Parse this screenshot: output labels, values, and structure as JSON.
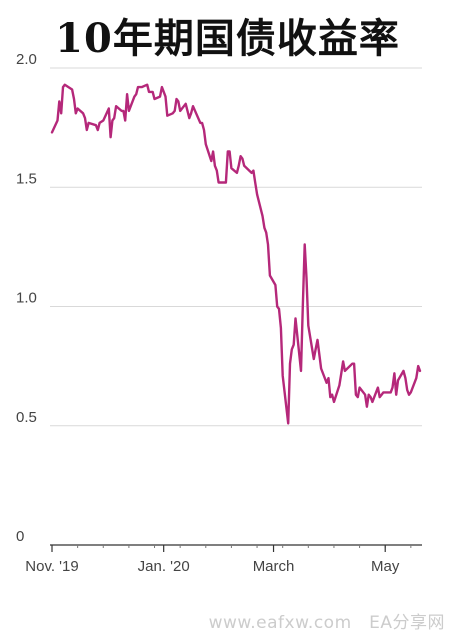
{
  "chart_data": {
    "type": "line",
    "title": "10年期国债收益率",
    "xlabel": "",
    "ylabel": "",
    "ylim": [
      0,
      2.0
    ],
    "yticks": [
      {
        "value": 0,
        "label": "0"
      },
      {
        "value": 0.5,
        "label": "0.5"
      },
      {
        "value": 1.0,
        "label": "1.0"
      },
      {
        "value": 1.5,
        "label": "1.5"
      },
      {
        "value": 2.0,
        "label": "2.0"
      }
    ],
    "xticks": [
      {
        "date": "2019-11-01",
        "label": "Nov. '19"
      },
      {
        "date": "2020-01-01",
        "label": "Jan. '20"
      },
      {
        "date": "2020-03-01",
        "label": "March"
      },
      {
        "date": "2020-05-01",
        "label": "May"
      }
    ],
    "grid": true,
    "line_color": "#b5287a",
    "series": [
      {
        "name": "",
        "points": [
          [
            "2019-11-01",
            1.73
          ],
          [
            "2019-11-04",
            1.78
          ],
          [
            "2019-11-05",
            1.86
          ],
          [
            "2019-11-06",
            1.81
          ],
          [
            "2019-11-07",
            1.92
          ],
          [
            "2019-11-08",
            1.93
          ],
          [
            "2019-11-12",
            1.91
          ],
          [
            "2019-11-13",
            1.87
          ],
          [
            "2019-11-14",
            1.81
          ],
          [
            "2019-11-15",
            1.83
          ],
          [
            "2019-11-18",
            1.81
          ],
          [
            "2019-11-19",
            1.79
          ],
          [
            "2019-11-20",
            1.74
          ],
          [
            "2019-11-21",
            1.77
          ],
          [
            "2019-11-25",
            1.76
          ],
          [
            "2019-11-26",
            1.74
          ],
          [
            "2019-11-27",
            1.77
          ],
          [
            "2019-11-29",
            1.78
          ],
          [
            "2019-12-02",
            1.83
          ],
          [
            "2019-12-03",
            1.71
          ],
          [
            "2019-12-04",
            1.78
          ],
          [
            "2019-12-05",
            1.79
          ],
          [
            "2019-12-06",
            1.84
          ],
          [
            "2019-12-09",
            1.82
          ],
          [
            "2019-12-10",
            1.82
          ],
          [
            "2019-12-11",
            1.78
          ],
          [
            "2019-12-12",
            1.89
          ],
          [
            "2019-12-13",
            1.82
          ],
          [
            "2019-12-16",
            1.88
          ],
          [
            "2019-12-17",
            1.89
          ],
          [
            "2019-12-18",
            1.92
          ],
          [
            "2019-12-19",
            1.92
          ],
          [
            "2019-12-20",
            1.92
          ],
          [
            "2019-12-23",
            1.93
          ],
          [
            "2019-12-24",
            1.9
          ],
          [
            "2019-12-26",
            1.9
          ],
          [
            "2019-12-27",
            1.87
          ],
          [
            "2019-12-30",
            1.88
          ],
          [
            "2019-12-31",
            1.92
          ],
          [
            "2020-01-02",
            1.88
          ],
          [
            "2020-01-03",
            1.8
          ],
          [
            "2020-01-06",
            1.81
          ],
          [
            "2020-01-07",
            1.82
          ],
          [
            "2020-01-08",
            1.87
          ],
          [
            "2020-01-09",
            1.86
          ],
          [
            "2020-01-10",
            1.82
          ],
          [
            "2020-01-13",
            1.85
          ],
          [
            "2020-01-14",
            1.82
          ],
          [
            "2020-01-15",
            1.79
          ],
          [
            "2020-01-16",
            1.81
          ],
          [
            "2020-01-17",
            1.84
          ],
          [
            "2020-01-21",
            1.77
          ],
          [
            "2020-01-22",
            1.77
          ],
          [
            "2020-01-23",
            1.74
          ],
          [
            "2020-01-24",
            1.68
          ],
          [
            "2020-01-27",
            1.61
          ],
          [
            "2020-01-28",
            1.65
          ],
          [
            "2020-01-29",
            1.59
          ],
          [
            "2020-01-30",
            1.57
          ],
          [
            "2020-01-31",
            1.52
          ],
          [
            "2020-02-03",
            1.52
          ],
          [
            "2020-02-04",
            1.52
          ],
          [
            "2020-02-05",
            1.65
          ],
          [
            "2020-02-06",
            1.65
          ],
          [
            "2020-02-07",
            1.58
          ],
          [
            "2020-02-10",
            1.56
          ],
          [
            "2020-02-11",
            1.59
          ],
          [
            "2020-02-12",
            1.63
          ],
          [
            "2020-02-13",
            1.62
          ],
          [
            "2020-02-14",
            1.59
          ],
          [
            "2020-02-18",
            1.56
          ],
          [
            "2020-02-19",
            1.57
          ],
          [
            "2020-02-20",
            1.52
          ],
          [
            "2020-02-21",
            1.47
          ],
          [
            "2020-02-24",
            1.38
          ],
          [
            "2020-02-25",
            1.33
          ],
          [
            "2020-02-26",
            1.31
          ],
          [
            "2020-02-27",
            1.26
          ],
          [
            "2020-02-28",
            1.13
          ],
          [
            "2020-03-02",
            1.09
          ],
          [
            "2020-03-03",
            1.0
          ],
          [
            "2020-03-04",
            0.99
          ],
          [
            "2020-03-05",
            0.91
          ],
          [
            "2020-03-06",
            0.71
          ],
          [
            "2020-03-09",
            0.51
          ],
          [
            "2020-03-10",
            0.76
          ],
          [
            "2020-03-11",
            0.82
          ],
          [
            "2020-03-12",
            0.84
          ],
          [
            "2020-03-13",
            0.95
          ],
          [
            "2020-03-16",
            0.73
          ],
          [
            "2020-03-17",
            1.0
          ],
          [
            "2020-03-18",
            1.26
          ],
          [
            "2020-03-19",
            1.12
          ],
          [
            "2020-03-20",
            0.92
          ],
          [
            "2020-03-23",
            0.78
          ],
          [
            "2020-03-24",
            0.82
          ],
          [
            "2020-03-25",
            0.86
          ],
          [
            "2020-03-26",
            0.8
          ],
          [
            "2020-03-27",
            0.74
          ],
          [
            "2020-03-30",
            0.68
          ],
          [
            "2020-03-31",
            0.7
          ],
          [
            "2020-04-01",
            0.62
          ],
          [
            "2020-04-02",
            0.63
          ],
          [
            "2020-04-03",
            0.6
          ],
          [
            "2020-04-06",
            0.67
          ],
          [
            "2020-04-07",
            0.72
          ],
          [
            "2020-04-08",
            0.77
          ],
          [
            "2020-04-09",
            0.73
          ],
          [
            "2020-04-13",
            0.76
          ],
          [
            "2020-04-14",
            0.76
          ],
          [
            "2020-04-15",
            0.63
          ],
          [
            "2020-04-16",
            0.62
          ],
          [
            "2020-04-17",
            0.66
          ],
          [
            "2020-04-20",
            0.63
          ],
          [
            "2020-04-21",
            0.58
          ],
          [
            "2020-04-22",
            0.63
          ],
          [
            "2020-04-23",
            0.62
          ],
          [
            "2020-04-24",
            0.6
          ],
          [
            "2020-04-27",
            0.66
          ],
          [
            "2020-04-28",
            0.62
          ],
          [
            "2020-04-29",
            0.63
          ],
          [
            "2020-04-30",
            0.64
          ],
          [
            "2020-05-01",
            0.64
          ],
          [
            "2020-05-04",
            0.64
          ],
          [
            "2020-05-05",
            0.66
          ],
          [
            "2020-05-06",
            0.72
          ],
          [
            "2020-05-07",
            0.63
          ],
          [
            "2020-05-08",
            0.69
          ],
          [
            "2020-05-11",
            0.73
          ],
          [
            "2020-05-12",
            0.7
          ],
          [
            "2020-05-13",
            0.65
          ],
          [
            "2020-05-14",
            0.63
          ],
          [
            "2020-05-15",
            0.64
          ],
          [
            "2020-05-18",
            0.7
          ],
          [
            "2020-05-19",
            0.75
          ],
          [
            "2020-05-20",
            0.73
          ]
        ]
      }
    ]
  },
  "watermark": "www.eafxw.com　EA分享网"
}
